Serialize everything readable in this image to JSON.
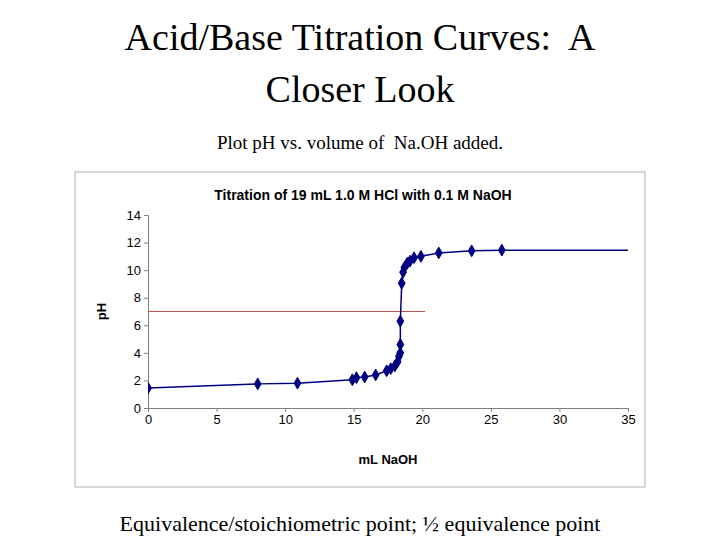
{
  "slide": {
    "title_lines": [
      "Acid/Base Titration Curves:  A",
      "Closer Look"
    ],
    "subtitle": "Plot pH vs. volume of  Na.OH added.",
    "caption": "Equivalence/stoichiometric point; ½ equivalence point"
  },
  "chart_data": {
    "type": "line",
    "title": "Titration of 19 mL 1.0 M HCl with 0.1 M NaOH",
    "x_label": "mL NaOH",
    "y_label": "pH",
    "xlim": [
      0,
      35
    ],
    "xticks": [
      0,
      5,
      10,
      15,
      20,
      25,
      30,
      35
    ],
    "ylim": [
      0,
      14
    ],
    "yticks": [
      0,
      2,
      4,
      6,
      8,
      10,
      12,
      14
    ],
    "grid": false,
    "series": [
      {
        "color": "#000080",
        "marker": "diamond",
        "line_style": "solid",
        "x": [
          0,
          8.0,
          10.9,
          14.9,
          15.2,
          15.8,
          16.6,
          17.4,
          17.7,
          18.0,
          18.2,
          18.3,
          18.4,
          18.4,
          18.4,
          18.5,
          18.6,
          18.7,
          18.9,
          19.1,
          19.4,
          19.9,
          21.2,
          23.6,
          25.8
        ],
        "values": [
          1.45,
          1.75,
          1.8,
          2.05,
          2.2,
          2.25,
          2.4,
          2.7,
          2.85,
          3.05,
          3.35,
          3.75,
          4.0,
          4.6,
          6.3,
          9.05,
          9.85,
          10.2,
          10.5,
          10.65,
          10.9,
          11.0,
          11.25,
          11.4,
          11.45
        ]
      },
      {
        "color": "#000080",
        "marker": "none",
        "line_style": "solid",
        "x": [
          25.8,
          35
        ],
        "values": [
          11.45,
          11.45
        ]
      }
    ],
    "reference_line": {
      "value": 7,
      "start": 0,
      "end": 20.2,
      "color": "#c0504d"
    }
  }
}
